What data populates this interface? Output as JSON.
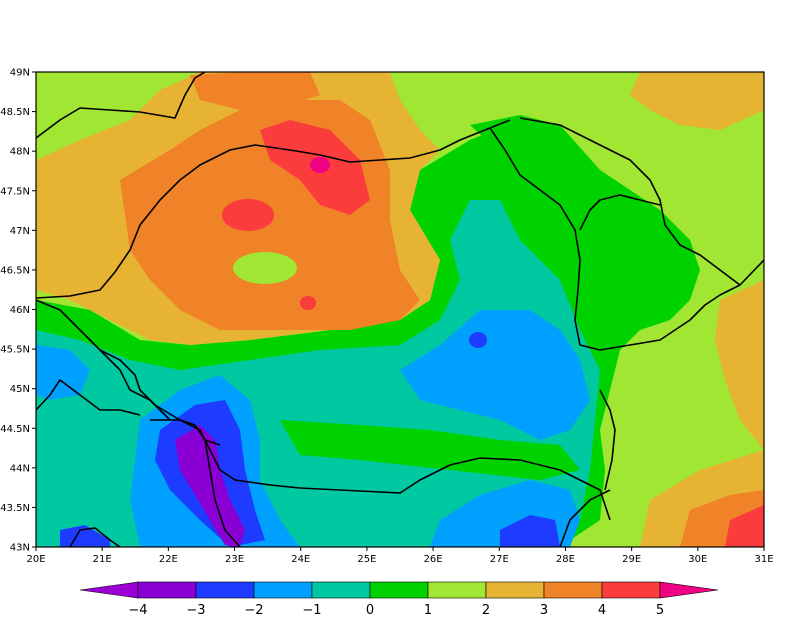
{
  "map": {
    "lat_labels": [
      "49N",
      "48.5N",
      "48N",
      "47.5N",
      "47N",
      "46.5N",
      "46N",
      "45.5N",
      "45N",
      "44.5N",
      "44N",
      "43.5N",
      "43N"
    ],
    "lon_labels": [
      "20E",
      "21E",
      "22E",
      "23E",
      "24E",
      "25E",
      "26E",
      "27E",
      "28E",
      "29E",
      "30E",
      "31E"
    ],
    "extent": {
      "lon": [
        20,
        31
      ],
      "lat": [
        43,
        49
      ]
    }
  },
  "colorbar": {
    "tick_labels": [
      "−4",
      "−3",
      "−2",
      "−1",
      "0",
      "1",
      "2",
      "3",
      "4",
      "5"
    ],
    "colors": {
      "below_min": "#9b00d6",
      "m4_m3": "#8a00d4",
      "m3_m2": "#1e3cff",
      "m2_m1": "#00a0ff",
      "m1_0": "#00c8a0",
      "0_1": "#00d200",
      "1_2": "#a0e632",
      "2_3": "#e6b432",
      "3_4": "#f08228",
      "4_5": "#fa3c3c",
      "above_max": "#f00082"
    }
  }
}
